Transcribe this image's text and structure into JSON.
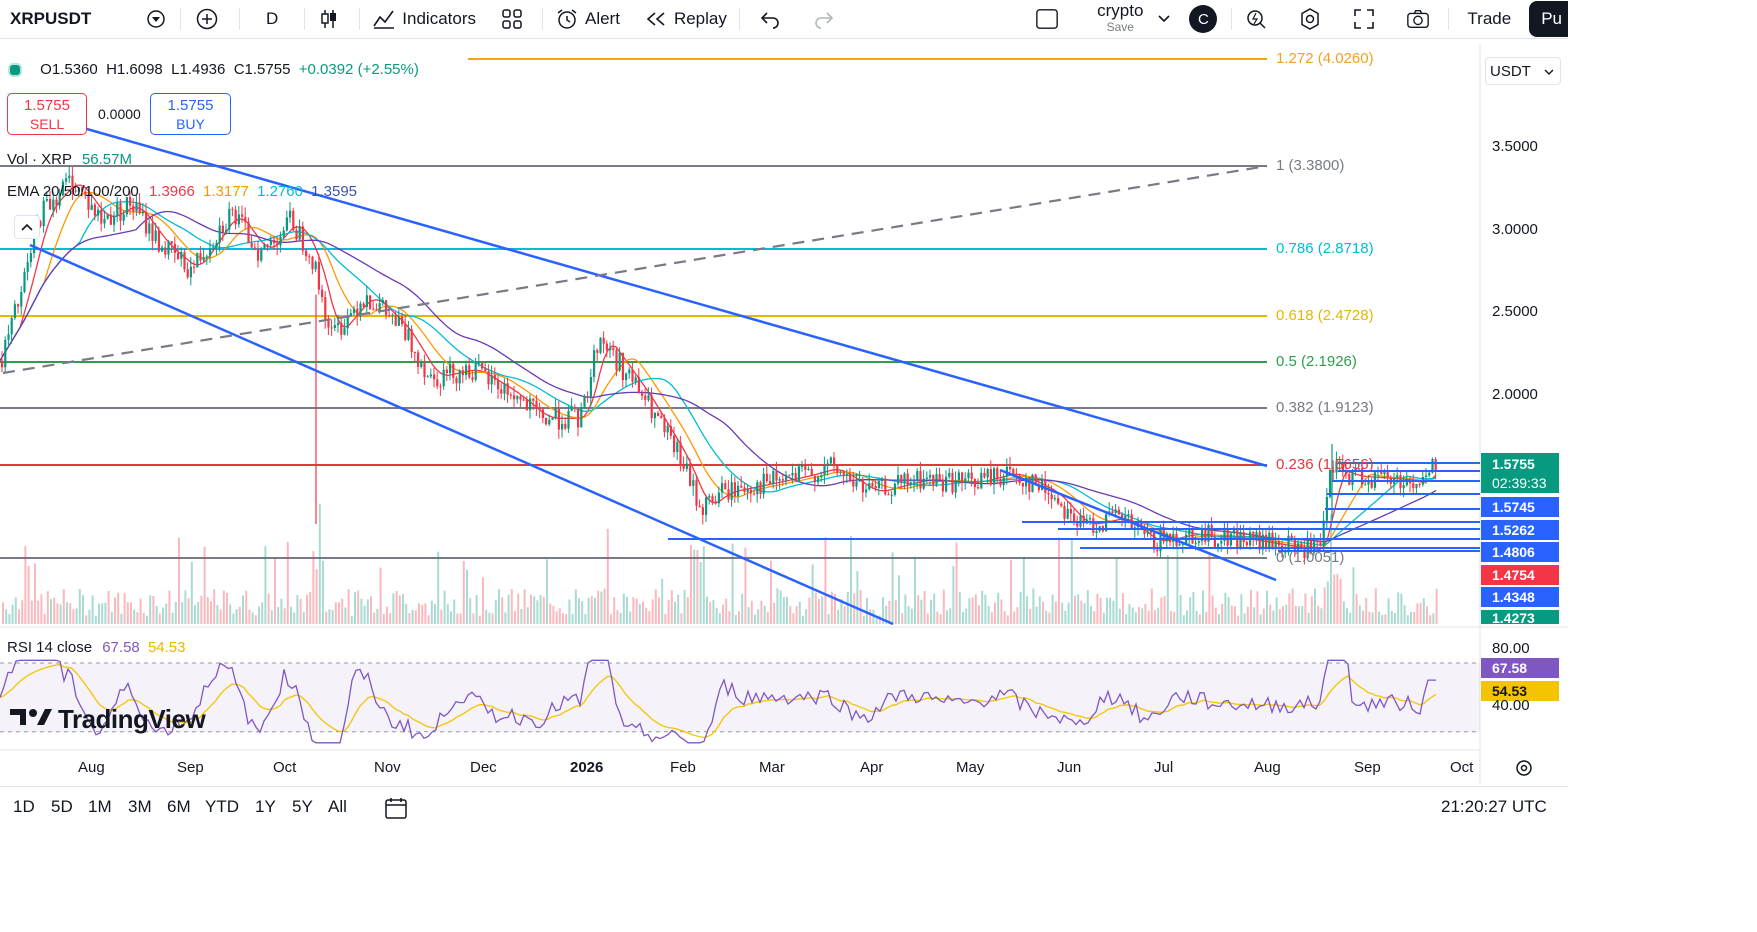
{
  "toolbar": {
    "symbol": "XRPUSDT",
    "interval": "D",
    "indicators": "Indicators",
    "alert": "Alert",
    "replay": "Replay",
    "layout_name": "crypto",
    "layout_status": "Save",
    "avatar_letter": "C",
    "trade": "Trade",
    "publish": "Pu"
  },
  "ohlc": {
    "o": "O1.5360",
    "h": "H1.6098",
    "l": "L1.4936",
    "c": "C1.5755",
    "change": "+0.0392 (+2.55%)"
  },
  "order": {
    "sell_price": "1.5755",
    "sell_label": "SELL",
    "spread": "0.0000",
    "buy_price": "1.5755",
    "buy_label": "BUY"
  },
  "volume_legend": {
    "label": "Vol · XRP",
    "value": "56.57M"
  },
  "ema_legend": {
    "label": "EMA 20/50/100/200",
    "v20": "1.3966",
    "v50": "1.3177",
    "v100": "1.2760",
    "v200": "1.3595"
  },
  "rsi_legend": {
    "label": "RSI 14 close",
    "rsi": "67.58",
    "ma": "54.53"
  },
  "currency": "USDT",
  "price_axis": [
    "3.5000",
    "3.0000",
    "2.5000",
    "2.0000"
  ],
  "price_tags": {
    "last": "1.5755",
    "countdown": "02:39:33",
    "t1": "1.5745",
    "t2": "1.5262",
    "t3": "1.4806",
    "t4": "1.4754",
    "t5": "1.4348",
    "t6": "1.4273"
  },
  "rsi_axis": {
    "top": "80.00",
    "bottom": "40.00",
    "rsi": "67.58",
    "ma": "54.53"
  },
  "fib": [
    {
      "level": "1.272 (4.0260)",
      "color": "#f0a31b"
    },
    {
      "level": "1 (3.3800)",
      "color": "#787b86"
    },
    {
      "level": "0.786 (2.8718)",
      "color": "#00bcd4"
    },
    {
      "level": "0.618 (2.4728)",
      "color": "#e2b800"
    },
    {
      "level": "0.5 (2.1926)",
      "color": "#2e9e4e"
    },
    {
      "level": "0.382 (1.9123)",
      "color": "#787b86"
    },
    {
      "level": "0.236 (1.5656)",
      "color": "#e0393e"
    },
    {
      "level": "0 (1.0051)",
      "color": "#787b86"
    }
  ],
  "time_axis": [
    "Aug",
    "Sep",
    "Oct",
    "Nov",
    "Dec",
    "2026",
    "Feb",
    "Mar",
    "Apr",
    "May",
    "Jun",
    "Jul",
    "Aug",
    "Sep",
    "Oct"
  ],
  "ranges": [
    "1D",
    "5D",
    "1M",
    "3M",
    "6M",
    "YTD",
    "1Y",
    "5Y",
    "All"
  ],
  "clock": "21:20:27 UTC",
  "brand": "TradingView",
  "colors": {
    "up": "#089981",
    "down": "#f23645",
    "blue_line": "#2962ff",
    "ema20": "#f23645",
    "ema50": "#ff9800",
    "ema100": "#00bcd4",
    "ema200": "#673ab7"
  },
  "chart_data": {
    "type": "candlestick",
    "symbol": "XRPUSDT",
    "interval": "1D",
    "x": [
      "Aug",
      "Sep",
      "Oct",
      "Nov",
      "Dec",
      "2026",
      "Feb",
      "Mar",
      "Apr",
      "May",
      "Jun",
      "Jul",
      "Aug",
      "Sep"
    ],
    "close_approx": [
      3.1,
      2.9,
      2.95,
      2.5,
      2.1,
      2.35,
      1.6,
      1.5,
      1.45,
      1.55,
      1.2,
      1.12,
      1.1,
      1.5
    ],
    "last_close": 1.5755,
    "ylim": [
      1.0,
      4.1
    ],
    "rsi_ylim": [
      40,
      80
    ]
  }
}
